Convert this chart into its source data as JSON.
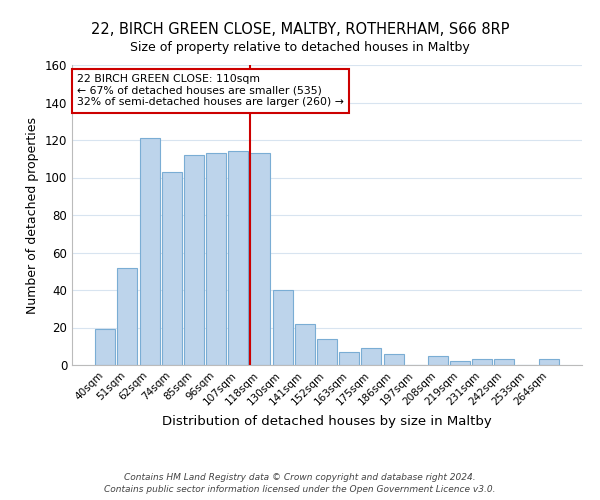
{
  "title1": "22, BIRCH GREEN CLOSE, MALTBY, ROTHERHAM, S66 8RP",
  "title2": "Size of property relative to detached houses in Maltby",
  "xlabel": "Distribution of detached houses by size in Maltby",
  "ylabel": "Number of detached properties",
  "bar_labels": [
    "40sqm",
    "51sqm",
    "62sqm",
    "74sqm",
    "85sqm",
    "96sqm",
    "107sqm",
    "118sqm",
    "130sqm",
    "141sqm",
    "152sqm",
    "163sqm",
    "175sqm",
    "186sqm",
    "197sqm",
    "208sqm",
    "219sqm",
    "231sqm",
    "242sqm",
    "253sqm",
    "264sqm"
  ],
  "bar_heights": [
    19,
    52,
    121,
    103,
    112,
    113,
    114,
    113,
    40,
    22,
    14,
    7,
    9,
    6,
    0,
    5,
    2,
    3,
    3,
    0,
    3
  ],
  "bar_color": "#bdd4eb",
  "bar_edge_color": "#7aadd4",
  "vline_color": "#cc0000",
  "ylim": [
    0,
    160
  ],
  "yticks": [
    0,
    20,
    40,
    60,
    80,
    100,
    120,
    140,
    160
  ],
  "annotation_text": "22 BIRCH GREEN CLOSE: 110sqm\n← 67% of detached houses are smaller (535)\n32% of semi-detached houses are larger (260) →",
  "annotation_box_color": "#ffffff",
  "annotation_box_edge": "#cc0000",
  "footer1": "Contains HM Land Registry data © Crown copyright and database right 2024.",
  "footer2": "Contains public sector information licensed under the Open Government Licence v3.0.",
  "grid_color": "#d8e4f0",
  "vline_bar_index": 7
}
